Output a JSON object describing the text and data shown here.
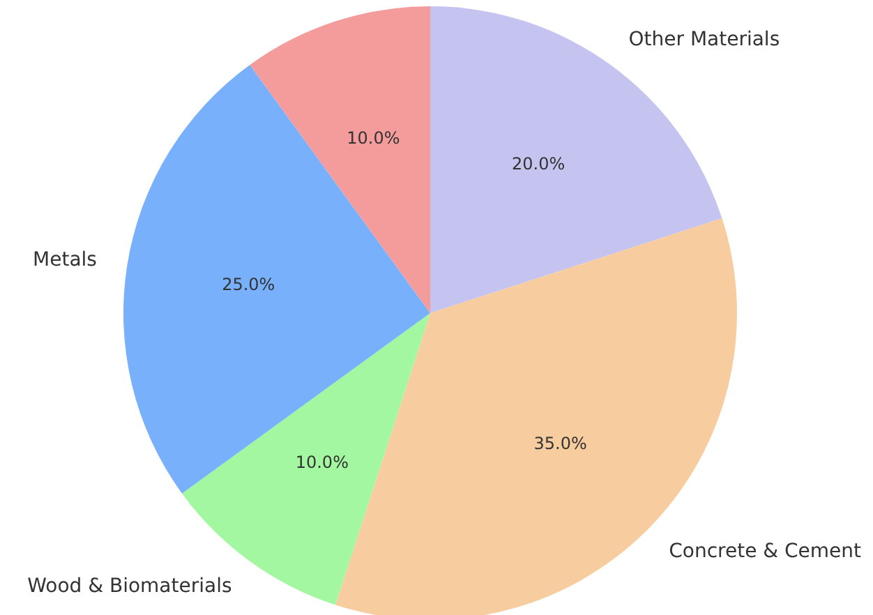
{
  "chart_data": {
    "type": "pie",
    "categories": [
      "Other Materials",
      "Concrete & Cement",
      "Wood & Biomaterials",
      "Metals",
      null
    ],
    "values": [
      20,
      35,
      10,
      25,
      10
    ],
    "value_labels": [
      "20.0%",
      "35.0%",
      "10.0%",
      "25.0%",
      "10.0%"
    ],
    "colors": [
      "#c5c3f0",
      "#f7cc9e",
      "#a3f7a0",
      "#78b0fb",
      "#f49c9c"
    ],
    "legend": false
  }
}
